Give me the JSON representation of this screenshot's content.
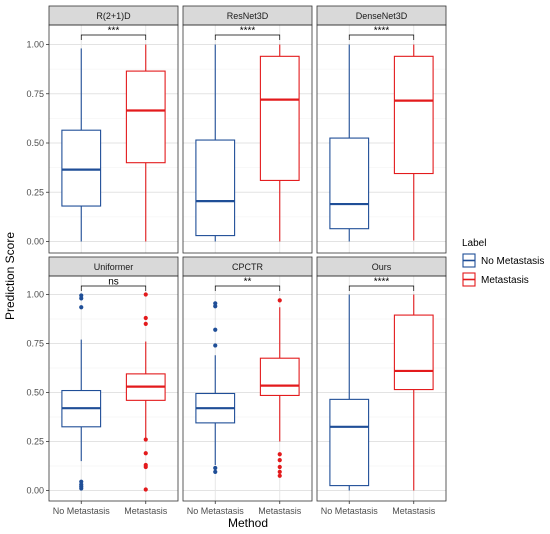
{
  "chart_data": {
    "type": "boxplot",
    "xlabel": "Method",
    "ylabel": "Prediction Score",
    "ylim": [
      0,
      1
    ],
    "yticks": [
      "0.00",
      "0.25",
      "0.50",
      "0.75",
      "1.00"
    ],
    "categories": [
      "No Metastasis",
      "Metastasis"
    ],
    "legend": {
      "title": "Label",
      "placement": "right",
      "entries": [
        {
          "name": "No Metastasis",
          "color": "#1f4e97"
        },
        {
          "name": "Metastasis",
          "color": "#e31a1c"
        }
      ]
    },
    "grid": true,
    "panels": [
      {
        "title": "R(2+1)D",
        "significance": "***",
        "boxes": [
          {
            "category": "No Metastasis",
            "min": 0.0,
            "q1": 0.18,
            "median": 0.365,
            "q3": 0.565,
            "max": 0.98,
            "outliers": []
          },
          {
            "category": "Metastasis",
            "min": 0.0,
            "q1": 0.4,
            "median": 0.665,
            "q3": 0.865,
            "max": 1.0,
            "outliers": []
          }
        ]
      },
      {
        "title": "ResNet3D",
        "significance": "****",
        "boxes": [
          {
            "category": "No Metastasis",
            "min": 0.0,
            "q1": 0.03,
            "median": 0.205,
            "q3": 0.515,
            "max": 1.0,
            "outliers": []
          },
          {
            "category": "Metastasis",
            "min": 0.0,
            "q1": 0.31,
            "median": 0.72,
            "q3": 0.94,
            "max": 1.0,
            "outliers": []
          }
        ]
      },
      {
        "title": "DenseNet3D",
        "significance": "****",
        "boxes": [
          {
            "category": "No Metastasis",
            "min": 0.0,
            "q1": 0.065,
            "median": 0.19,
            "q3": 0.525,
            "max": 1.0,
            "outliers": []
          },
          {
            "category": "Metastasis",
            "min": 0.005,
            "q1": 0.345,
            "median": 0.715,
            "q3": 0.94,
            "max": 1.0,
            "outliers": []
          }
        ]
      },
      {
        "title": "Uniformer",
        "significance": "ns",
        "boxes": [
          {
            "category": "No Metastasis",
            "min": 0.15,
            "q1": 0.325,
            "median": 0.42,
            "q3": 0.51,
            "max": 0.77,
            "outliers": [
              0.995,
              0.98,
              0.935,
              0.045,
              0.03,
              0.02,
              0.01
            ]
          },
          {
            "category": "Metastasis",
            "min": 0.265,
            "q1": 0.46,
            "median": 0.53,
            "q3": 0.595,
            "max": 0.76,
            "outliers": [
              1.0,
              0.88,
              0.85,
              0.26,
              0.19,
              0.13,
              0.12,
              0.005
            ]
          }
        ]
      },
      {
        "title": "CPCTR",
        "significance": "**",
        "boxes": [
          {
            "category": "No Metastasis",
            "min": 0.13,
            "q1": 0.345,
            "median": 0.42,
            "q3": 0.495,
            "max": 0.69,
            "outliers": [
              0.955,
              0.94,
              0.82,
              0.74,
              0.115,
              0.095
            ]
          },
          {
            "category": "Metastasis",
            "min": 0.25,
            "q1": 0.485,
            "median": 0.535,
            "q3": 0.675,
            "max": 0.935,
            "outliers": [
              0.97,
              0.185,
              0.155,
              0.12,
              0.095,
              0.075
            ]
          }
        ]
      },
      {
        "title": "Ours",
        "significance": "****",
        "boxes": [
          {
            "category": "No Metastasis",
            "min": 0.0,
            "q1": 0.025,
            "median": 0.325,
            "q3": 0.465,
            "max": 1.0,
            "outliers": []
          },
          {
            "category": "Metastasis",
            "min": 0.0,
            "q1": 0.515,
            "median": 0.61,
            "q3": 0.895,
            "max": 1.0,
            "outliers": []
          }
        ]
      }
    ]
  }
}
